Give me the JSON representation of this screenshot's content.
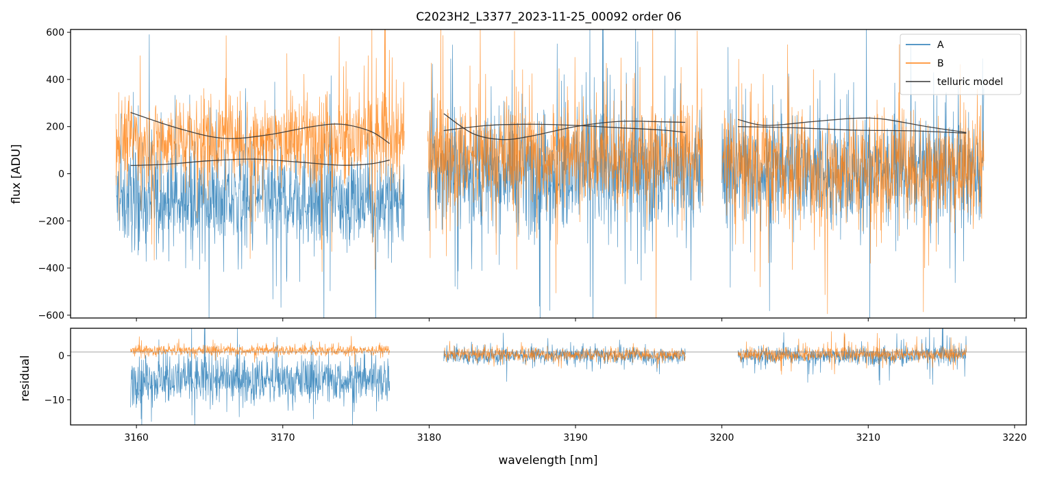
{
  "chart_data": {
    "type": "line",
    "title": "C2023H2_L3377_2023-11-25_00092  order 06",
    "xlabel": "wavelength [nm]",
    "xlim": [
      3155.5,
      3220.8
    ],
    "xticks": [
      3160,
      3170,
      3180,
      3190,
      3200,
      3210,
      3220
    ],
    "colors": {
      "A": "#1f77b4",
      "B": "#ff7f0e",
      "model": "#333333"
    },
    "panels": [
      {
        "id": "flux",
        "ylabel": "flux [ADU]",
        "ylim": [
          -612,
          612
        ],
        "yticks": [
          -600,
          -400,
          -200,
          0,
          200,
          400,
          600
        ],
        "legend": {
          "placement": "top-right",
          "entries": [
            "A",
            "B",
            "telluric model"
          ]
        },
        "segments": [
          {
            "x_range": [
              3158.6,
              3178.3
            ],
            "A": {
              "mean": -110,
              "amp": 170,
              "spike": 500
            },
            "B": {
              "mean": 150,
              "amp": 150,
              "spike": 500
            }
          },
          {
            "x_range": [
              3179.9,
              3198.7
            ],
            "A": {
              "mean": 10,
              "amp": 210,
              "spike": 600
            },
            "B": {
              "mean": 80,
              "amp": 180,
              "spike": 550
            }
          },
          {
            "x_range": [
              3200.0,
              3217.9
            ],
            "A": {
              "mean": 10,
              "amp": 190,
              "spike": 550
            },
            "B": {
              "mean": 30,
              "amp": 200,
              "spike": 600
            }
          }
        ],
        "telluric_model": [
          {
            "name": "model-1a",
            "x": [
              3159.6,
              3163,
              3166,
              3169,
              3172,
              3174,
              3176,
              3177.3
            ],
            "y": [
              260,
              190,
              150,
              165,
              200,
              210,
              180,
              128
            ]
          },
          {
            "name": "model-1b",
            "x": [
              3159.6,
              3162,
              3165,
              3168,
              3171,
              3174,
              3176,
              3177.3
            ],
            "y": [
              35,
              40,
              55,
              62,
              50,
              36,
              42,
              58
            ]
          },
          {
            "name": "model-2a",
            "x": [
              3181.0,
              3183,
              3185,
              3187,
              3190,
              3193,
              3196,
              3197.5
            ],
            "y": [
              255,
              170,
              145,
              160,
              200,
              222,
              220,
              218
            ]
          },
          {
            "name": "model-2b",
            "x": [
              3181.0,
              3184,
              3187,
              3190,
              3193,
              3196,
              3197.5
            ],
            "y": [
              183,
              205,
              210,
              205,
              195,
              185,
              175
            ]
          },
          {
            "name": "model-3a",
            "x": [
              3201.1,
              3203,
              3206,
              3209,
              3211,
              3214,
              3216.7
            ],
            "y": [
              230,
              205,
              220,
              235,
              232,
              200,
              175
            ]
          },
          {
            "name": "model-3b",
            "x": [
              3201.1,
              3205,
              3209,
              3213,
              3216.7
            ],
            "y": [
              200,
              195,
              185,
              182,
              172
            ]
          }
        ]
      },
      {
        "id": "residual",
        "ylabel": "residual",
        "ylim": [
          -15.7,
          6.2
        ],
        "yticks": [
          -10,
          0
        ],
        "hline": 0.8,
        "segments": [
          {
            "x_range": [
              3159.6,
              3177.3
            ],
            "A": {
              "mean": -5.5,
              "amp": 4.5,
              "spike": 9
            },
            "B": {
              "mean": 1.2,
              "amp": 1.0,
              "spike": 2.5
            }
          },
          {
            "x_range": [
              3181.0,
              3197.5
            ],
            "A": {
              "mean": 0.0,
              "amp": 1.6,
              "spike": 4
            },
            "B": {
              "mean": 0.3,
              "amp": 1.3,
              "spike": 3
            }
          },
          {
            "x_range": [
              3201.1,
              3216.7
            ],
            "A": {
              "mean": 0.0,
              "amp": 1.6,
              "spike": 6
            },
            "B": {
              "mean": 0.3,
              "amp": 1.3,
              "spike": 4
            }
          }
        ]
      }
    ]
  }
}
